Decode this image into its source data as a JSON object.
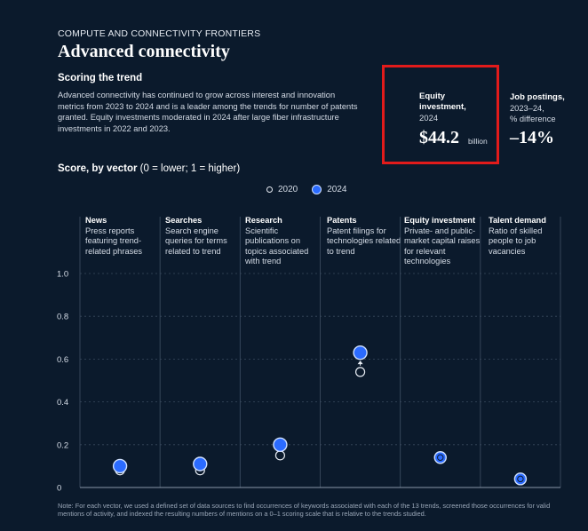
{
  "header": {
    "eyebrow": "COMPUTE AND CONNECTIVITY FRONTIERS",
    "title": "Advanced connectivity",
    "subhead": "Scoring the trend",
    "description": "Advanced connectivity has continued to grow across interest and innovation metrics from 2023 to 2024 and is a leader among the trends for number of patents granted. Equity investments moderated in 2024 after large fiber infrastructure investments in 2022 and 2023."
  },
  "stats": {
    "equity": {
      "label_line1": "Equity",
      "label_line2": "investment,",
      "year": "2024",
      "value": "$44.2",
      "unit": "billion"
    },
    "jobs": {
      "label": "Job postings,",
      "sub_line1": "2023–24,",
      "sub_line2": "% difference",
      "value": "–14%"
    }
  },
  "colors": {
    "background": "#0b1a2c",
    "dot_2024": "#2b6bff",
    "highlight_box": "#e21b1b",
    "grid": "#3a4a5e"
  },
  "chart_data": {
    "type": "scatter",
    "title_bold": "Score, by vector",
    "title_rest": " (0 = lower; 1 = higher)",
    "legend": [
      "2020",
      "2024"
    ],
    "legend_position": "top-center",
    "ylim": [
      0,
      1
    ],
    "yticks": [
      "0",
      "0.2",
      "0.4",
      "0.6",
      "0.8",
      "1.0"
    ],
    "categories": [
      {
        "name": "News",
        "desc": "Press reports featuring trend-related phrases"
      },
      {
        "name": "Searches",
        "desc": "Search engine queries for terms related to trend"
      },
      {
        "name": "Research",
        "desc": "Scientific publications on topics associated with trend"
      },
      {
        "name": "Patents",
        "desc": "Patent filings for technologies related to trend"
      },
      {
        "name": "Equity investment",
        "desc": "Private- and public-market capital raises for relevant technologies"
      },
      {
        "name": "Talent demand",
        "desc": "Ratio of skilled people to job vacancies"
      }
    ],
    "series": [
      {
        "name": "2020",
        "values": [
          0.08,
          0.08,
          0.15,
          0.54,
          0.14,
          0.04
        ]
      },
      {
        "name": "2024",
        "values": [
          0.1,
          0.11,
          0.2,
          0.63,
          0.14,
          0.04
        ]
      }
    ],
    "grid": true,
    "footnote": "Note: For each vector, we used a defined set of data sources to find occurrences of keywords associated with each of the 13 trends, screened those occurrences for valid mentions of activity, and indexed the resulting numbers of mentions on a 0–1 scoring scale that is relative to the trends studied."
  }
}
